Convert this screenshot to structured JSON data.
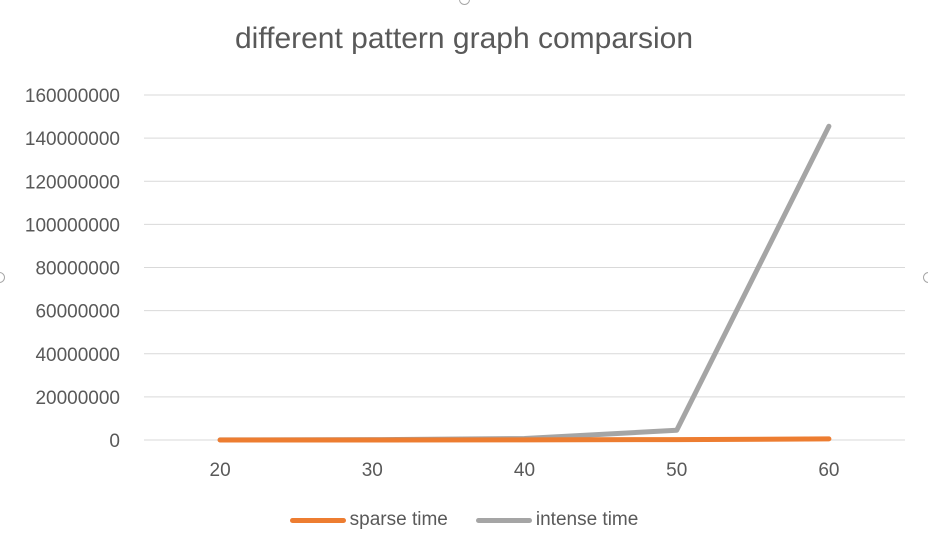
{
  "chart_data": {
    "type": "line",
    "title": "different pattern graph comparsion",
    "xlabel": "",
    "ylabel": "",
    "categories": [
      "20",
      "30",
      "40",
      "50",
      "60"
    ],
    "yticks": [
      "0",
      "20000000",
      "40000000",
      "60000000",
      "80000000",
      "100000000",
      "120000000",
      "140000000",
      "160000000"
    ],
    "ylim": [
      0,
      160000000
    ],
    "grid": true,
    "legend_position": "bottom",
    "series": [
      {
        "name": "sparse time",
        "color": "#ed7d31",
        "values": [
          5000,
          20000,
          60000,
          200000,
          500000
        ]
      },
      {
        "name": "intense time",
        "color": "#a5a5a5",
        "values": [
          30000,
          150000,
          700000,
          4500000,
          145500000
        ]
      }
    ]
  }
}
